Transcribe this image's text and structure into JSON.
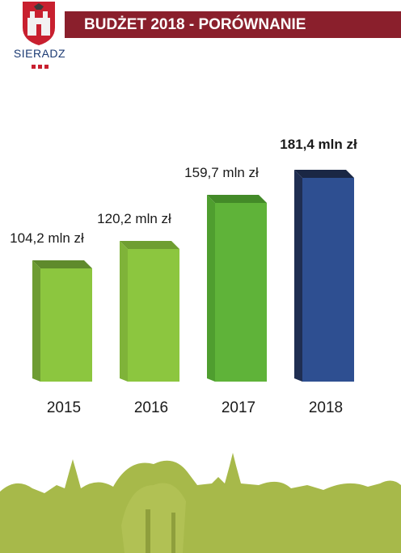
{
  "header": {
    "title": "BUDŻET 2018 - PORÓWNANIE",
    "city": "SIERADZ"
  },
  "colors": {
    "title_bar": "#8a1f2c",
    "bar_green_light": "#8cc63f",
    "bar_green": "#5fb339",
    "bar_green_dark": "#6ea73a",
    "bar_highlight": "#2e4f91",
    "skyline": "#a7b94a"
  },
  "chart_data": {
    "type": "bar",
    "title": "",
    "xlabel": "",
    "ylabel": "",
    "categories": [
      "2015",
      "2016",
      "2017",
      "2018"
    ],
    "values": [
      104.2,
      120.2,
      159.7,
      181.4
    ],
    "data_labels": [
      "104,2 mln zł",
      "120,2 mln zł",
      "159,7 mln zł",
      "181,4 mln zł"
    ],
    "unit": "mln zł",
    "ylim": [
      0,
      181.4
    ],
    "grid": false,
    "highlight": "2018"
  }
}
